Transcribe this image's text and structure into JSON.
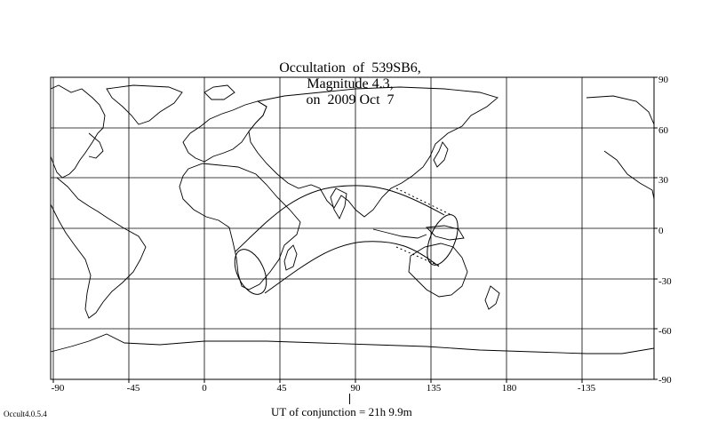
{
  "title": {
    "event": "Occultation  of  539SB6,",
    "magnitude": "Magnitude 4.3,",
    "date": "on  2009 Oct  7"
  },
  "map": {
    "type": "world-map-equirectangular",
    "x_ticks": [
      "-90",
      "-45",
      "0",
      "45",
      "90",
      "135",
      "180",
      "-135"
    ],
    "y_ticks": [
      "90",
      "60",
      "30",
      "0",
      "-30",
      "-60",
      "-90"
    ],
    "grid": true,
    "occultation_path": {
      "shape": "curved band from southern Africa across Indian Ocean to Australia/New Guinea",
      "style": "solid outline with dotted extension"
    }
  },
  "conjunction_label": "UT of conjunction = 21h  9.9m",
  "version": "Occult4.0.5.4"
}
